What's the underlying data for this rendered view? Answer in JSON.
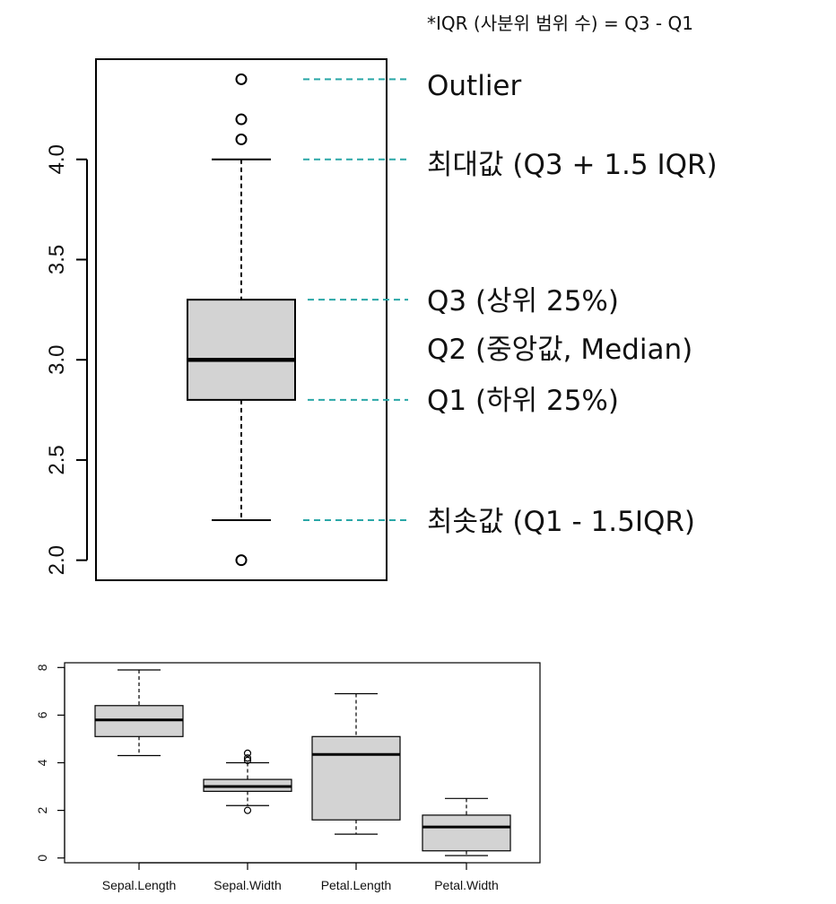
{
  "note": "*IQR (사분위 범위 수) = Q3 - Q1",
  "annotations": {
    "outlier": "Outlier",
    "max": "최대값 (Q3 + 1.5 IQR)",
    "q3": "Q3 (상위 25%)",
    "q2": "Q2 (중앙값, Median)",
    "q1": "Q1 (하위 25%)",
    "min": "최솟값 (Q1 - 1.5IQR)"
  },
  "colors": {
    "box_fill": "#d3d3d3",
    "leader_line": "#2aa7a7",
    "axis": "#000000"
  },
  "chart_data": [
    {
      "type": "box",
      "categories": [
        "Sepal.Width"
      ],
      "ylim": [
        1.9,
        4.5
      ],
      "yticks": [
        "2.0",
        "2.5",
        "3.0",
        "3.5",
        "4.0"
      ],
      "series": [
        {
          "min": 2.2,
          "q1": 2.8,
          "median": 3.0,
          "q3": 3.3,
          "max": 4.0,
          "outliers": [
            4.4,
            4.2,
            4.1,
            2.0
          ]
        }
      ]
    },
    {
      "type": "box",
      "categories": [
        "Sepal.Length",
        "Sepal.Width",
        "Petal.Length",
        "Petal.Width"
      ],
      "ylim": [
        -0.2,
        8.2
      ],
      "yticks": [
        "0",
        "2",
        "4",
        "6",
        "8"
      ],
      "series": [
        {
          "min": 4.3,
          "q1": 5.1,
          "median": 5.8,
          "q3": 6.4,
          "max": 7.9,
          "outliers": []
        },
        {
          "min": 2.2,
          "q1": 2.8,
          "median": 3.0,
          "q3": 3.3,
          "max": 4.0,
          "outliers": [
            4.4,
            4.2,
            4.1,
            2.0
          ]
        },
        {
          "min": 1.0,
          "q1": 1.6,
          "median": 4.35,
          "q3": 5.1,
          "max": 6.9,
          "outliers": []
        },
        {
          "min": 0.1,
          "q1": 0.3,
          "median": 1.3,
          "q3": 1.8,
          "max": 2.5,
          "outliers": []
        }
      ]
    }
  ]
}
